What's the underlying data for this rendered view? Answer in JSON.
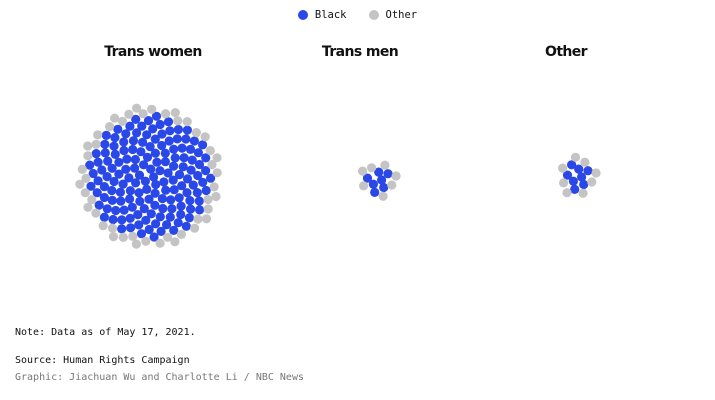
{
  "legend": [
    {
      "label": "Black",
      "color": "#2a48e8"
    },
    {
      "label": "Other",
      "color": "#c4c4c4"
    }
  ],
  "chart_data": {
    "type": "packed-bubble",
    "description_unit": "one dot per person",
    "groups": [
      {
        "name": "Trans women",
        "black": 150,
        "other": 46
      },
      {
        "name": "Trans men",
        "black": 7,
        "other": 7
      },
      {
        "name": "Other",
        "black": 8,
        "other": 8
      }
    ]
  },
  "footer": {
    "note": "Note: Data as of May 17, 2021.",
    "source": "Source: Human Rights Campaign",
    "credit": "Graphic: Jiachuan Wu and Charlotte Li / NBC News"
  }
}
